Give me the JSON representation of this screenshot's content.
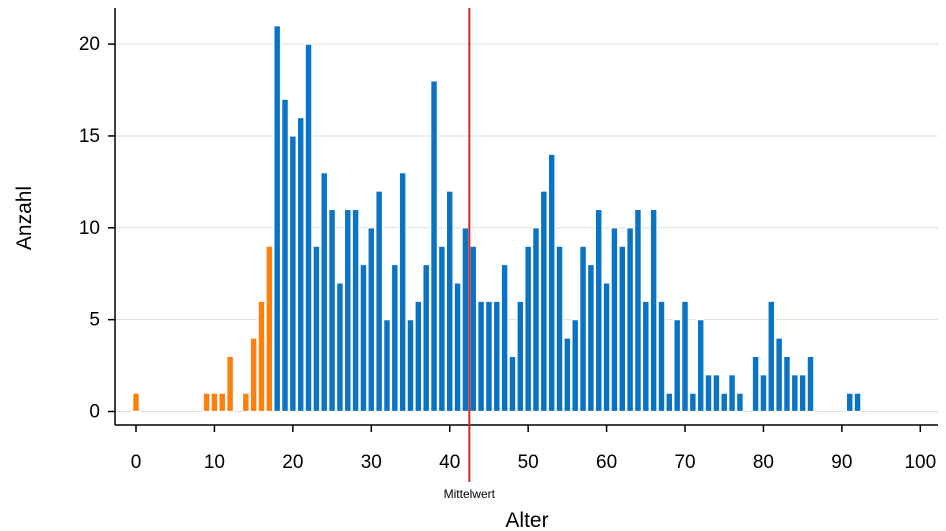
{
  "chart_data": {
    "type": "bar",
    "title": "",
    "xlabel": "Alter",
    "ylabel": "Anzahl",
    "xlim": [
      -2,
      102
    ],
    "ylim": [
      -0.9,
      22
    ],
    "x_ticks": [
      0,
      10,
      20,
      30,
      40,
      50,
      60,
      70,
      80,
      90,
      100
    ],
    "y_ticks": [
      0,
      5,
      10,
      15,
      20
    ],
    "grid": "horizontal",
    "mean": {
      "value": 42.5,
      "label": "Mittelwert",
      "color": "#d62728"
    },
    "colors": {
      "minors": "#ff7f0e",
      "adults": "#0a73c4",
      "outline": "#ffffff",
      "grid": "#dddddd",
      "axis": "#000000"
    },
    "series": [
      {
        "color": "#ff7f0e",
        "x": [
          0,
          9,
          10,
          11,
          12,
          14,
          15,
          16,
          17
        ],
        "values": [
          1,
          1,
          1,
          1,
          3,
          1,
          4,
          6,
          9
        ]
      },
      {
        "color": "#0a73c4",
        "x": [
          18,
          19,
          20,
          21,
          22,
          23,
          24,
          25,
          26,
          27,
          28,
          29,
          30,
          31,
          32,
          33,
          34,
          35,
          36,
          37,
          38,
          39,
          40,
          41,
          42,
          43,
          44,
          45,
          46,
          47,
          48,
          49,
          50,
          51,
          52,
          53,
          54,
          55,
          56,
          57,
          58,
          59,
          60,
          61,
          62,
          63,
          64,
          65,
          66,
          67,
          68,
          69,
          70,
          71,
          72,
          73,
          74,
          75,
          76,
          77,
          79,
          80,
          81,
          82,
          83,
          84,
          85,
          86,
          91,
          92
        ],
        "values": [
          21,
          17,
          15,
          16,
          20,
          9,
          13,
          11,
          7,
          11,
          11,
          8,
          10,
          12,
          5,
          8,
          13,
          5,
          6,
          8,
          18,
          9,
          12,
          7,
          10,
          9,
          6,
          6,
          6,
          8,
          3,
          6,
          9,
          10,
          12,
          14,
          9,
          4,
          5,
          9,
          8,
          11,
          7,
          10,
          9,
          10,
          11,
          6,
          11,
          6,
          1,
          5,
          6,
          1,
          5,
          2,
          2,
          1,
          2,
          1,
          3,
          2,
          6,
          4,
          3,
          2,
          2,
          3,
          1,
          1
        ]
      }
    ]
  }
}
